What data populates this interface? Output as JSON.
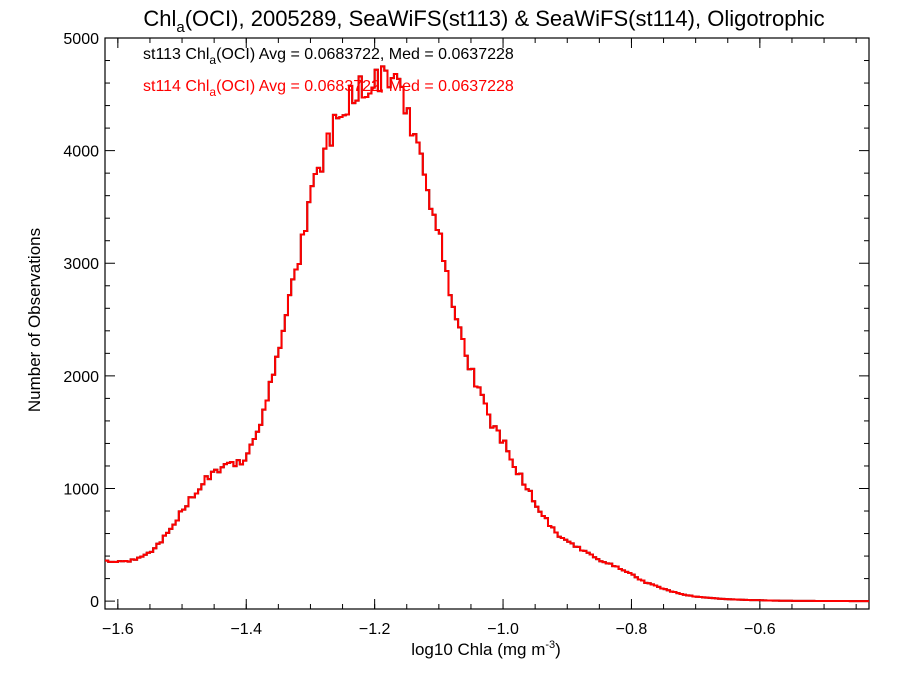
{
  "chart_data": {
    "type": "line",
    "title_main": "Chl",
    "title_sub": "a",
    "title_rest": "(OCI), 2005289, SeaWiFS(st113) & SeaWiFS(st114), Oligotrophic",
    "xlabel_main": "log10 Chla (mg m",
    "xlabel_sup": "-3",
    "xlabel_end": ")",
    "ylabel": "Number of Observations",
    "xlim": [
      -1.62,
      -0.43
    ],
    "ylim": [
      -70,
      5000
    ],
    "xticks": [
      -1.6,
      -1.4,
      -1.2,
      -1.0,
      -0.8,
      -0.6
    ],
    "xtick_labels": [
      "−1.6",
      "−1.4",
      "−1.2",
      "−1.0",
      "−0.8",
      "−0.6"
    ],
    "yticks": [
      0,
      1000,
      2000,
      3000,
      4000,
      5000
    ],
    "ytick_labels": [
      "0",
      "1000",
      "2000",
      "3000",
      "4000",
      "5000"
    ],
    "legend": [
      {
        "name": "st113",
        "color": "#000000",
        "prefix": "st113 Chl",
        "sub": "a",
        "suffix": "(OCI) Avg = 0.0683722, Med = 0.0637228"
      },
      {
        "name": "st114",
        "color": "#ff0000",
        "prefix": "st114 Chl",
        "sub": "a",
        "suffix": "(OCI) Avg = 0.0683722, Med = 0.0637228"
      }
    ],
    "series": [
      {
        "name": "st113",
        "color": "#000000",
        "x": [
          -1.62,
          -1.59,
          -1.56,
          -1.54,
          -1.52,
          -1.5,
          -1.48,
          -1.46,
          -1.44,
          -1.42,
          -1.4,
          -1.38,
          -1.36,
          -1.34,
          -1.32,
          -1.3,
          -1.28,
          -1.26,
          -1.24,
          -1.22,
          -1.2,
          -1.18,
          -1.17,
          -1.16,
          -1.14,
          -1.12,
          -1.1,
          -1.08,
          -1.06,
          -1.04,
          -1.02,
          -1.0,
          -0.98,
          -0.96,
          -0.94,
          -0.92,
          -0.9,
          -0.88,
          -0.86,
          -0.84,
          -0.82,
          -0.8,
          -0.78,
          -0.76,
          -0.74,
          -0.72,
          -0.7,
          -0.68,
          -0.66,
          -0.64,
          -0.62,
          -0.6,
          -0.58,
          -0.56,
          -0.5,
          -0.43
        ],
        "y": [
          360,
          350,
          390,
          480,
          620,
          800,
          960,
          1100,
          1180,
          1210,
          1260,
          1550,
          1950,
          2520,
          3000,
          3550,
          3950,
          4250,
          4450,
          4560,
          4600,
          4680,
          4600,
          4500,
          4200,
          3750,
          3250,
          2720,
          2230,
          1900,
          1600,
          1420,
          1180,
          980,
          780,
          620,
          520,
          470,
          400,
          340,
          300,
          240,
          170,
          130,
          90,
          60,
          40,
          30,
          20,
          15,
          10,
          8,
          5,
          3,
          1,
          0
        ]
      },
      {
        "name": "st114",
        "color": "#ff0000",
        "x": [
          -1.62,
          -1.59,
          -1.56,
          -1.54,
          -1.52,
          -1.5,
          -1.48,
          -1.46,
          -1.44,
          -1.42,
          -1.4,
          -1.38,
          -1.36,
          -1.34,
          -1.32,
          -1.3,
          -1.28,
          -1.26,
          -1.24,
          -1.22,
          -1.2,
          -1.18,
          -1.17,
          -1.16,
          -1.14,
          -1.12,
          -1.1,
          -1.08,
          -1.06,
          -1.04,
          -1.02,
          -1.0,
          -0.98,
          -0.96,
          -0.94,
          -0.92,
          -0.9,
          -0.88,
          -0.86,
          -0.84,
          -0.82,
          -0.8,
          -0.78,
          -0.76,
          -0.74,
          -0.72,
          -0.7,
          -0.68,
          -0.66,
          -0.64,
          -0.62,
          -0.6,
          -0.58,
          -0.56,
          -0.5,
          -0.43
        ],
        "y": [
          360,
          350,
          390,
          480,
          620,
          800,
          960,
          1100,
          1180,
          1210,
          1260,
          1550,
          1950,
          2520,
          3000,
          3550,
          3950,
          4250,
          4450,
          4560,
          4600,
          4680,
          4600,
          4500,
          4200,
          3750,
          3250,
          2720,
          2230,
          1900,
          1600,
          1420,
          1180,
          980,
          780,
          620,
          520,
          470,
          400,
          340,
          300,
          240,
          170,
          130,
          90,
          60,
          40,
          30,
          20,
          15,
          10,
          8,
          5,
          3,
          1,
          0
        ]
      }
    ]
  }
}
